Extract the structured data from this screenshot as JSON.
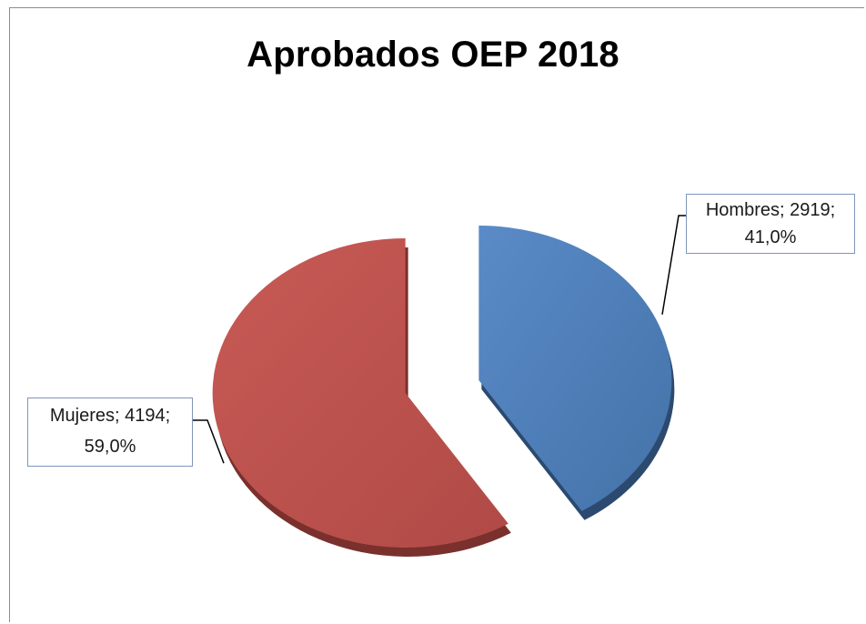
{
  "chart_data": {
    "type": "pie",
    "title": "Aprobados OEP 2018",
    "categories": [
      "Hombres",
      "Mujeres"
    ],
    "values": [
      2919,
      4194
    ],
    "percentages": [
      41.0,
      59.0
    ],
    "colors": [
      "#4f81bd",
      "#c0504d"
    ],
    "labels": [
      {
        "line1": "Hombres; 2919;",
        "line2": "41,0%"
      },
      {
        "line1": "Mujeres; 4194;",
        "line2": "59,0%"
      }
    ]
  }
}
